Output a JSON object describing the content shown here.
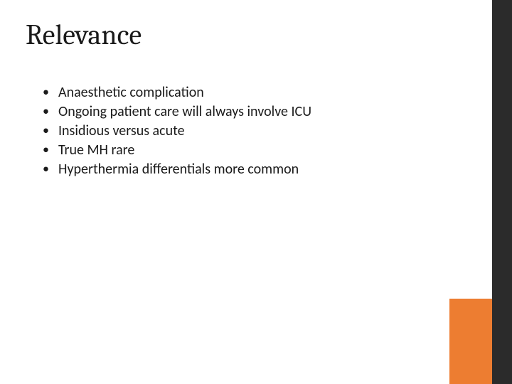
{
  "slide": {
    "title": "Relevance",
    "title_font": "Cambria",
    "title_fontsize": 40,
    "title_color": "#1a1a1a",
    "bullets": [
      "Anaesthetic complication",
      "Ongoing patient care will always involve ICU",
      "Insidious versus acute",
      "True MH rare",
      "Hyperthermia differentials more common"
    ],
    "bullet_font": "Calibri",
    "bullet_fontsize": 20,
    "bullet_color": "#1a1a1a",
    "background_color": "#ffffff",
    "accent": {
      "dark_bar_color": "#2b2b2b",
      "dark_bar_width": 28,
      "orange_block_color": "#ed7d31",
      "orange_block_width": 60,
      "orange_block_height": 120
    }
  }
}
